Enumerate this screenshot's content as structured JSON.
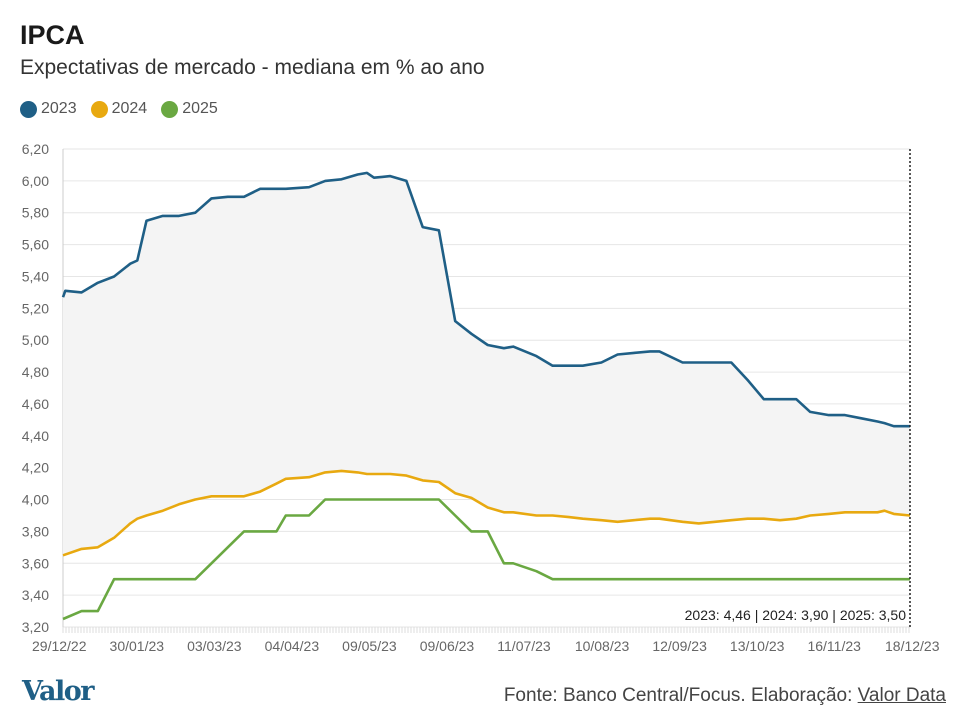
{
  "header": {
    "title": "IPCA",
    "subtitle": "Expectativas de mercado - mediana em % ao ano"
  },
  "footer": {
    "logo_text": "Valor",
    "source_prefix": "Fonte: Banco Central/Focus. Elaboração: ",
    "source_link": "Valor Data"
  },
  "chart_data": {
    "type": "line",
    "title": "IPCA",
    "subtitle": "Expectativas de mercado - mediana em % ao ano",
    "xlabel": "",
    "ylabel": "",
    "ylim": [
      3.2,
      6.2
    ],
    "yticks": [
      3.2,
      3.4,
      3.6,
      3.8,
      4.0,
      4.2,
      4.4,
      4.6,
      4.8,
      5.0,
      5.2,
      5.4,
      5.6,
      5.8,
      6.0,
      6.2
    ],
    "ytick_labels": [
      "3,20",
      "3,40",
      "3,60",
      "3,80",
      "4,00",
      "4,20",
      "4,40",
      "4,60",
      "4,80",
      "5,00",
      "5,20",
      "5,40",
      "5,60",
      "5,80",
      "6,00",
      "6,20"
    ],
    "xtick_labels": [
      "29/12/22",
      "30/01/23",
      "03/03/23",
      "04/04/23",
      "09/05/23",
      "09/06/23",
      "11/07/23",
      "10/08/23",
      "12/09/23",
      "13/10/23",
      "16/11/23",
      "18/12/23"
    ],
    "grid": true,
    "legend_position": "top-left",
    "colors": {
      "2023": "#1f5f86",
      "2024": "#e8a910",
      "2025": "#6aa842"
    },
    "annotation": "2023: 4,46 | 2024: 3,90 | 2025: 3,50",
    "series": [
      {
        "name": "2023",
        "x": [
          "29/12/22",
          "30/12/22",
          "06/01/23",
          "13/01/23",
          "20/01/23",
          "27/01/23",
          "30/01/23",
          "03/02/23",
          "10/02/23",
          "17/02/23",
          "24/02/23",
          "03/03/23",
          "10/03/23",
          "17/03/23",
          "24/03/23",
          "31/03/23",
          "04/04/23",
          "14/04/23",
          "21/04/23",
          "28/04/23",
          "05/05/23",
          "09/05/23",
          "12/05/23",
          "19/05/23",
          "26/05/23",
          "02/06/23",
          "09/06/23",
          "16/06/23",
          "23/06/23",
          "30/06/23",
          "07/07/23",
          "11/07/23",
          "21/07/23",
          "28/07/23",
          "04/08/23",
          "10/08/23",
          "18/08/23",
          "25/08/23",
          "01/09/23",
          "08/09/23",
          "12/09/23",
          "22/09/23",
          "29/09/23",
          "06/10/23",
          "13/10/23",
          "20/10/23",
          "27/10/23",
          "03/11/23",
          "10/11/23",
          "16/11/23",
          "24/11/23",
          "01/12/23",
          "08/12/23",
          "15/12/23",
          "18/12/23",
          "22/12/23",
          "29/12/23"
        ],
        "values": [
          5.27,
          5.31,
          5.3,
          5.36,
          5.4,
          5.48,
          5.5,
          5.75,
          5.78,
          5.78,
          5.8,
          5.89,
          5.9,
          5.9,
          5.95,
          5.95,
          5.95,
          5.96,
          6.0,
          6.01,
          6.04,
          6.05,
          6.02,
          6.03,
          6.0,
          5.71,
          5.69,
          5.12,
          5.04,
          4.97,
          4.95,
          4.96,
          4.9,
          4.84,
          4.84,
          4.84,
          4.86,
          4.91,
          4.92,
          4.93,
          4.93,
          4.86,
          4.86,
          4.86,
          4.86,
          4.75,
          4.63,
          4.63,
          4.63,
          4.55,
          4.53,
          4.53,
          4.51,
          4.49,
          4.48,
          4.46,
          4.46
        ]
      },
      {
        "name": "2024",
        "x": [
          "29/12/22",
          "06/01/23",
          "13/01/23",
          "20/01/23",
          "27/01/23",
          "30/01/23",
          "03/02/23",
          "10/02/23",
          "17/02/23",
          "24/02/23",
          "03/03/23",
          "10/03/23",
          "17/03/23",
          "24/03/23",
          "31/03/23",
          "04/04/23",
          "14/04/23",
          "21/04/23",
          "28/04/23",
          "05/05/23",
          "09/05/23",
          "19/05/23",
          "26/05/23",
          "02/06/23",
          "09/06/23",
          "16/06/23",
          "23/06/23",
          "30/06/23",
          "07/07/23",
          "11/07/23",
          "21/07/23",
          "28/07/23",
          "04/08/23",
          "10/08/23",
          "18/08/23",
          "25/08/23",
          "01/09/23",
          "08/09/23",
          "12/09/23",
          "22/09/23",
          "29/09/23",
          "06/10/23",
          "13/10/23",
          "20/10/23",
          "27/10/23",
          "03/11/23",
          "10/11/23",
          "16/11/23",
          "24/11/23",
          "01/12/23",
          "08/12/23",
          "15/12/23",
          "18/12/23",
          "22/12/23",
          "29/12/23"
        ],
        "values": [
          3.65,
          3.69,
          3.7,
          3.76,
          3.85,
          3.88,
          3.9,
          3.93,
          3.97,
          4.0,
          4.02,
          4.02,
          4.02,
          4.05,
          4.1,
          4.13,
          4.14,
          4.17,
          4.18,
          4.17,
          4.16,
          4.16,
          4.15,
          4.12,
          4.11,
          4.04,
          4.01,
          3.95,
          3.92,
          3.92,
          3.9,
          3.9,
          3.89,
          3.88,
          3.87,
          3.86,
          3.87,
          3.88,
          3.88,
          3.86,
          3.85,
          3.86,
          3.87,
          3.88,
          3.88,
          3.87,
          3.88,
          3.9,
          3.91,
          3.92,
          3.92,
          3.92,
          3.93,
          3.91,
          3.9
        ]
      },
      {
        "name": "2025",
        "x": [
          "29/12/22",
          "06/01/23",
          "13/01/23",
          "20/01/23",
          "27/01/23",
          "30/01/23",
          "03/02/23",
          "10/02/23",
          "17/02/23",
          "24/02/23",
          "03/03/23",
          "10/03/23",
          "17/03/23",
          "24/03/23",
          "31/03/23",
          "04/04/23",
          "14/04/23",
          "21/04/23",
          "28/04/23",
          "05/05/23",
          "09/05/23",
          "19/05/23",
          "26/05/23",
          "02/06/23",
          "09/06/23",
          "16/06/23",
          "23/06/23",
          "30/06/23",
          "07/07/23",
          "11/07/23",
          "21/07/23",
          "28/07/23",
          "10/08/23",
          "12/09/23",
          "13/10/23",
          "16/11/23",
          "18/12/23",
          "29/12/23"
        ],
        "values": [
          3.25,
          3.3,
          3.3,
          3.5,
          3.5,
          3.5,
          3.5,
          3.5,
          3.5,
          3.5,
          3.6,
          3.7,
          3.8,
          3.8,
          3.8,
          3.9,
          3.9,
          4.0,
          4.0,
          4.0,
          4.0,
          4.0,
          4.0,
          4.0,
          4.0,
          3.9,
          3.8,
          3.8,
          3.6,
          3.6,
          3.55,
          3.5,
          3.5,
          3.5,
          3.5,
          3.5,
          3.5,
          3.5
        ]
      }
    ]
  }
}
